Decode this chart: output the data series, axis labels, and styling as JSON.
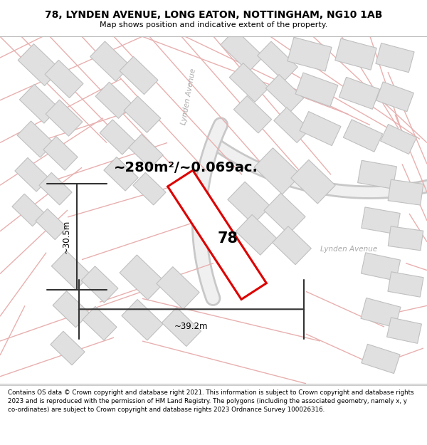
{
  "title": "78, LYNDEN AVENUE, LONG EATON, NOTTINGHAM, NG10 1AB",
  "subtitle": "Map shows position and indicative extent of the property.",
  "footer": "Contains OS data © Crown copyright and database right 2021. This information is subject to Crown copyright and database rights 2023 and is reproduced with the permission of HM Land Registry. The polygons (including the associated geometry, namely x, y co-ordinates) are subject to Crown copyright and database rights 2023 Ordnance Survey 100026316.",
  "area_label": "~280m²/~0.069ac.",
  "width_label": "~39.2m",
  "height_label": "~30.5m",
  "property_number": "78",
  "bg_color": "#f7f7f7",
  "road_fill": "#e8e8e8",
  "road_stroke": "#c8c8c8",
  "pink_road_color": "#e8b0b0",
  "building_fill": "#e0e0e0",
  "building_stroke": "#c0c0c0",
  "red_color": "#dd0000",
  "dim_color": "#333333",
  "street_color": "#aaaaaa",
  "title_fontsize": 10,
  "subtitle_fontsize": 8,
  "footer_fontsize": 6.3,
  "area_fontsize": 14,
  "label_fontsize": 8.5
}
